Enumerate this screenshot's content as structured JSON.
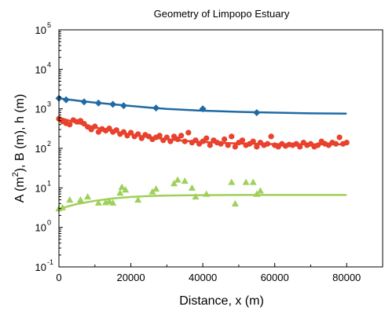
{
  "chart_data": {
    "type": "scatter",
    "title": "Geometry of Limpopo Estuary",
    "xlabel": "Distance, x (m)",
    "ylabel_parts": [
      "A (m",
      "2",
      "), B (m), h (m)"
    ],
    "xlim": [
      0,
      90000
    ],
    "ylim": [
      0.1,
      100000
    ],
    "yscale": "log",
    "x_ticks": [
      0,
      20000,
      40000,
      60000,
      80000
    ],
    "y_tick_exponents": [
      "-1",
      "0",
      "1",
      "2",
      "3",
      "4",
      "5"
    ],
    "y_tick_base": "10",
    "grid": false,
    "colors": {
      "area": "#1f6aa5",
      "width": "#e8412c",
      "depth": "#9fd05a"
    },
    "series": [
      {
        "key": "area",
        "marker": "diamond",
        "points": [
          [
            0,
            1850
          ],
          [
            2000,
            1700
          ],
          [
            7000,
            1500
          ],
          [
            11000,
            1400
          ],
          [
            15000,
            1300
          ],
          [
            18000,
            1200
          ],
          [
            27000,
            1050
          ],
          [
            40000,
            1000
          ],
          [
            55000,
            800
          ]
        ],
        "fit": [
          [
            0,
            1850
          ],
          [
            5000,
            1620
          ],
          [
            10000,
            1440
          ],
          [
            15000,
            1300
          ],
          [
            20000,
            1180
          ],
          [
            25000,
            1080
          ],
          [
            30000,
            1000
          ],
          [
            40000,
            900
          ],
          [
            50000,
            840
          ],
          [
            60000,
            800
          ],
          [
            70000,
            770
          ],
          [
            80000,
            760
          ]
        ]
      },
      {
        "key": "width",
        "marker": "circle",
        "points": [
          [
            0,
            560
          ],
          [
            1000,
            480
          ],
          [
            2000,
            430
          ],
          [
            3000,
            400
          ],
          [
            4000,
            520
          ],
          [
            5000,
            470
          ],
          [
            6000,
            500
          ],
          [
            7000,
            420
          ],
          [
            8000,
            350
          ],
          [
            9000,
            300
          ],
          [
            10000,
            360
          ],
          [
            11000,
            260
          ],
          [
            12000,
            310
          ],
          [
            13000,
            280
          ],
          [
            14000,
            320
          ],
          [
            15000,
            260
          ],
          [
            16000,
            290
          ],
          [
            17000,
            230
          ],
          [
            18000,
            260
          ],
          [
            19000,
            210
          ],
          [
            20000,
            250
          ],
          [
            21000,
            200
          ],
          [
            22000,
            230
          ],
          [
            23000,
            180
          ],
          [
            24000,
            220
          ],
          [
            25000,
            200
          ],
          [
            26000,
            170
          ],
          [
            27000,
            190
          ],
          [
            28000,
            210
          ],
          [
            29000,
            160
          ],
          [
            30000,
            190
          ],
          [
            31000,
            150
          ],
          [
            32000,
            200
          ],
          [
            33000,
            170
          ],
          [
            34000,
            210
          ],
          [
            35000,
            150
          ],
          [
            36000,
            250
          ],
          [
            37000,
            140
          ],
          [
            38000,
            160
          ],
          [
            39000,
            130
          ],
          [
            40000,
            150
          ],
          [
            41000,
            180
          ],
          [
            42000,
            120
          ],
          [
            43000,
            160
          ],
          [
            44000,
            140
          ],
          [
            45000,
            130
          ],
          [
            46000,
            170
          ],
          [
            47000,
            120
          ],
          [
            48000,
            200
          ],
          [
            49000,
            110
          ],
          [
            50000,
            140
          ],
          [
            51000,
            160
          ],
          [
            52000,
            120
          ],
          [
            53000,
            130
          ],
          [
            54000,
            150
          ],
          [
            55000,
            110
          ],
          [
            56000,
            140
          ],
          [
            57000,
            120
          ],
          [
            58000,
            130
          ],
          [
            59000,
            200
          ],
          [
            60000,
            120
          ],
          [
            61000,
            110
          ],
          [
            62000,
            130
          ],
          [
            63000,
            115
          ],
          [
            64000,
            125
          ],
          [
            65000,
            120
          ],
          [
            66000,
            130
          ],
          [
            67000,
            110
          ],
          [
            68000,
            140
          ],
          [
            69000,
            120
          ],
          [
            70000,
            130
          ],
          [
            71000,
            110
          ],
          [
            72000,
            120
          ],
          [
            73000,
            150
          ],
          [
            74000,
            130
          ],
          [
            75000,
            120
          ],
          [
            76000,
            140
          ],
          [
            77000,
            130
          ],
          [
            78000,
            190
          ],
          [
            79000,
            130
          ],
          [
            80000,
            140
          ]
        ],
        "fit": [
          [
            0,
            600
          ],
          [
            5000,
            440
          ],
          [
            10000,
            340
          ],
          [
            15000,
            270
          ],
          [
            20000,
            225
          ],
          [
            25000,
            192
          ],
          [
            30000,
            170
          ],
          [
            35000,
            155
          ],
          [
            40000,
            145
          ],
          [
            45000,
            138
          ],
          [
            50000,
            133
          ],
          [
            60000,
            128
          ],
          [
            70000,
            126
          ],
          [
            80000,
            126
          ]
        ]
      },
      {
        "key": "depth",
        "marker": "triangle",
        "points": [
          [
            0,
            3
          ],
          [
            1000,
            3.2
          ],
          [
            3000,
            5
          ],
          [
            6000,
            5
          ],
          [
            8000,
            6
          ],
          [
            11000,
            4.2
          ],
          [
            13000,
            4.3
          ],
          [
            14000,
            4.6
          ],
          [
            15000,
            4.2
          ],
          [
            17000,
            7.5
          ],
          [
            17500,
            10.5
          ],
          [
            18500,
            9
          ],
          [
            22000,
            5
          ],
          [
            26000,
            8
          ],
          [
            27000,
            9.5
          ],
          [
            32000,
            13
          ],
          [
            33000,
            16
          ],
          [
            35000,
            15
          ],
          [
            37000,
            10
          ],
          [
            38000,
            6
          ],
          [
            41000,
            7
          ],
          [
            48000,
            14
          ],
          [
            49000,
            4
          ],
          [
            52000,
            14
          ],
          [
            54000,
            14
          ],
          [
            55000,
            7
          ],
          [
            56000,
            8.5
          ]
        ],
        "fit": [
          [
            0,
            2.9
          ],
          [
            2000,
            3.3
          ],
          [
            5000,
            3.9
          ],
          [
            10000,
            4.7
          ],
          [
            15000,
            5.4
          ],
          [
            20000,
            5.9
          ],
          [
            25000,
            6.2
          ],
          [
            30000,
            6.4
          ],
          [
            40000,
            6.55
          ],
          [
            50000,
            6.6
          ],
          [
            60000,
            6.6
          ],
          [
            80000,
            6.6
          ]
        ]
      }
    ]
  }
}
